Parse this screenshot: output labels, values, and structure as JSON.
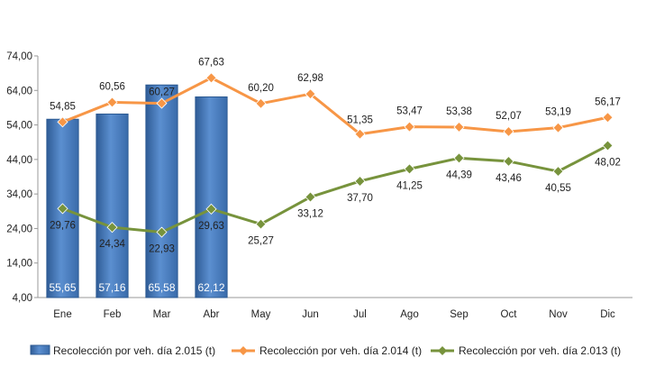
{
  "chart_data": {
    "type": "bar",
    "title": "",
    "xlabel": "",
    "ylabel": "",
    "categories": [
      "Ene",
      "Feb",
      "Mar",
      "Abr",
      "May",
      "Jun",
      "Jul",
      "Ago",
      "Sep",
      "Oct",
      "Nov",
      "Dic"
    ],
    "ylim": [
      4,
      74
    ],
    "yticks": [
      "4,00",
      "14,00",
      "24,00",
      "34,00",
      "44,00",
      "54,00",
      "64,00",
      "74,00"
    ],
    "ytick_values": [
      4,
      14,
      24,
      34,
      44,
      54,
      64,
      74
    ],
    "grid": false,
    "legend_position": "bottom",
    "series": [
      {
        "name": "Recolección por veh. día 2.015 (t)",
        "type": "bar",
        "color": "#4A7EBB",
        "values": [
          55.65,
          57.16,
          65.58,
          62.12,
          null,
          null,
          null,
          null,
          null,
          null,
          null,
          null
        ],
        "labels": [
          "55,65",
          "57,16",
          "65,58",
          "62,12",
          "",
          "",
          "",
          "",
          "",
          "",
          "",
          ""
        ]
      },
      {
        "name": "Recolección por veh. día 2.014 (t)",
        "type": "line",
        "color": "#F79646",
        "values": [
          54.85,
          60.56,
          60.27,
          67.63,
          60.2,
          62.98,
          51.35,
          53.47,
          53.38,
          52.07,
          53.19,
          56.17
        ],
        "labels": [
          "54,85",
          "60,56",
          "60,27",
          "67,63",
          "60,20",
          "62,98",
          "51,35",
          "53,47",
          "53,38",
          "52,07",
          "53,19",
          "56,17"
        ]
      },
      {
        "name": "Recolección por veh. día 2.013 (t)",
        "type": "line",
        "color": "#77933C",
        "values": [
          29.76,
          24.34,
          22.93,
          29.63,
          25.27,
          33.12,
          37.7,
          41.25,
          44.39,
          43.46,
          40.55,
          48.02
        ],
        "labels": [
          "29,76",
          "24,34",
          "22,93",
          "29,63",
          "25,27",
          "33,12",
          "37,70",
          "41,25",
          "44,39",
          "43,46",
          "40,55",
          "48,02"
        ]
      }
    ]
  }
}
